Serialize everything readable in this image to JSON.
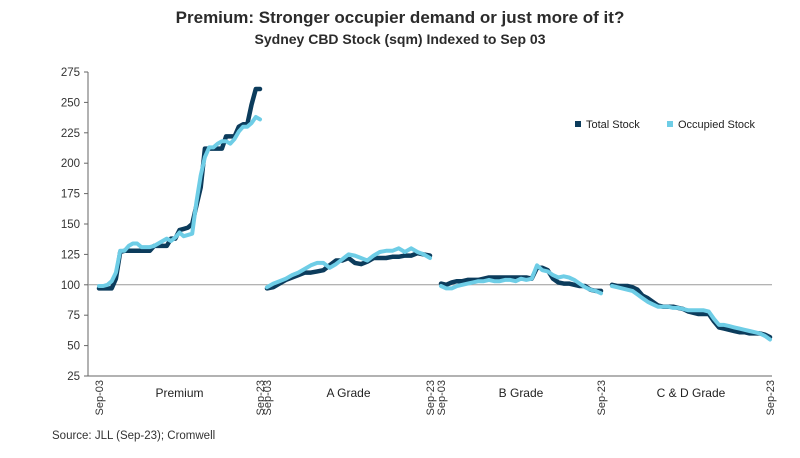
{
  "title": "Premium: Stronger occupier demand or just more of it?",
  "subtitle": "Sydney CBD Stock (sqm) Indexed to Sep 03",
  "source": "Source: JLL (Sep-23); Cromwell",
  "colors": {
    "total": "#0c3c5c",
    "occupied": "#6ecde6",
    "axis": "#666666",
    "baseline": "#9a9a9a"
  },
  "chart_data": {
    "type": "line",
    "title": "Premium: Stronger occupier demand or just more of it?",
    "subtitle": "Sydney CBD Stock (sqm) Indexed to Sep 03",
    "ylim": [
      25,
      275
    ],
    "yticks": [
      25,
      50,
      75,
      100,
      125,
      150,
      175,
      200,
      225,
      250,
      275
    ],
    "baseline": 100,
    "legend": {
      "placement": "top-right",
      "entries": [
        "Total Stock",
        "Occupied Stock"
      ]
    },
    "panels": [
      {
        "name": "Premium",
        "start_label": "Sep-03",
        "end_label": "Sep-23",
        "series": [
          {
            "name": "Total Stock",
            "values": [
              97,
              97,
              97,
              97,
              105,
              127,
              128,
              128,
              128,
              128,
              128,
              128,
              128,
              132,
              132,
              132,
              132,
              138,
              138,
              145,
              146,
              147,
              150,
              165,
              180,
              212,
              212,
              212,
              212,
              212,
              222,
              222,
              222,
              230,
              232,
              232,
              248,
              261,
              261
            ]
          },
          {
            "name": "Occupied Stock",
            "values": [
              99,
              99,
              100,
              103,
              110,
              128,
              128,
              132,
              134,
              134,
              131,
              131,
              131,
              132,
              134,
              136,
              138,
              136,
              139,
              143,
              140,
              141,
              142,
              168,
              190,
              205,
              213,
              213,
              216,
              218,
              218,
              216,
              220,
              226,
              230,
              230,
              233,
              238,
              236
            ]
          }
        ]
      },
      {
        "name": "A Grade",
        "start_label": "Sep-03",
        "end_label": "Sep-23",
        "series": [
          {
            "name": "Total Stock",
            "values": [
              97,
              98,
              101,
              104,
              106,
              108,
              110,
              110,
              111,
              112,
              116,
              120,
              120,
              122,
              118,
              117,
              119,
              122,
              122,
              122,
              123,
              123,
              124,
              124,
              126,
              125,
              124
            ]
          },
          {
            "name": "Occupied Stock",
            "values": [
              98,
              101,
              103,
              105,
              108,
              110,
              113,
              116,
              118,
              118,
              114,
              117,
              121,
              125,
              124,
              122,
              120,
              124,
              127,
              128,
              128,
              130,
              127,
              130,
              127,
              125,
              122
            ]
          }
        ]
      },
      {
        "name": "B Grade",
        "start_label": "Sep-03",
        "end_label": "Sep-23",
        "series": [
          {
            "name": "Total Stock",
            "values": [
              101,
              100,
              102,
              103,
              103,
              104,
              104,
              104,
              105,
              106,
              106,
              106,
              106,
              106,
              106,
              106,
              106,
              105,
              114,
              114,
              112,
              105,
              102,
              101,
              101,
              100,
              99,
              99,
              96,
              95,
              95
            ]
          },
          {
            "name": "Occupied Stock",
            "values": [
              99,
              97,
              97,
              99,
              100,
              101,
              102,
              103,
              103,
              104,
              103,
              103,
              104,
              104,
              103,
              105,
              104,
              105,
              116,
              112,
              111,
              108,
              106,
              107,
              106,
              104,
              101,
              98,
              96,
              95,
              93
            ]
          }
        ]
      },
      {
        "name": "C & D Grade",
        "start_label": "",
        "end_label": "Sep-23",
        "series": [
          {
            "name": "Total Stock",
            "values": [
              100,
              99,
              99,
              99,
              98,
              96,
              91,
              89,
              86,
              83,
              82,
              82,
              82,
              81,
              80,
              78,
              77,
              76,
              76,
              76,
              70,
              65,
              64,
              63,
              62,
              61,
              61,
              60,
              60,
              60,
              59,
              57
            ]
          },
          {
            "name": "Occupied Stock",
            "values": [
              99,
              98,
              97,
              96,
              95,
              92,
              89,
              86,
              84,
              82,
              82,
              82,
              81,
              81,
              80,
              79,
              79,
              79,
              79,
              78,
              72,
              67,
              67,
              66,
              65,
              64,
              63,
              62,
              61,
              60,
              58,
              55
            ]
          }
        ]
      }
    ]
  }
}
